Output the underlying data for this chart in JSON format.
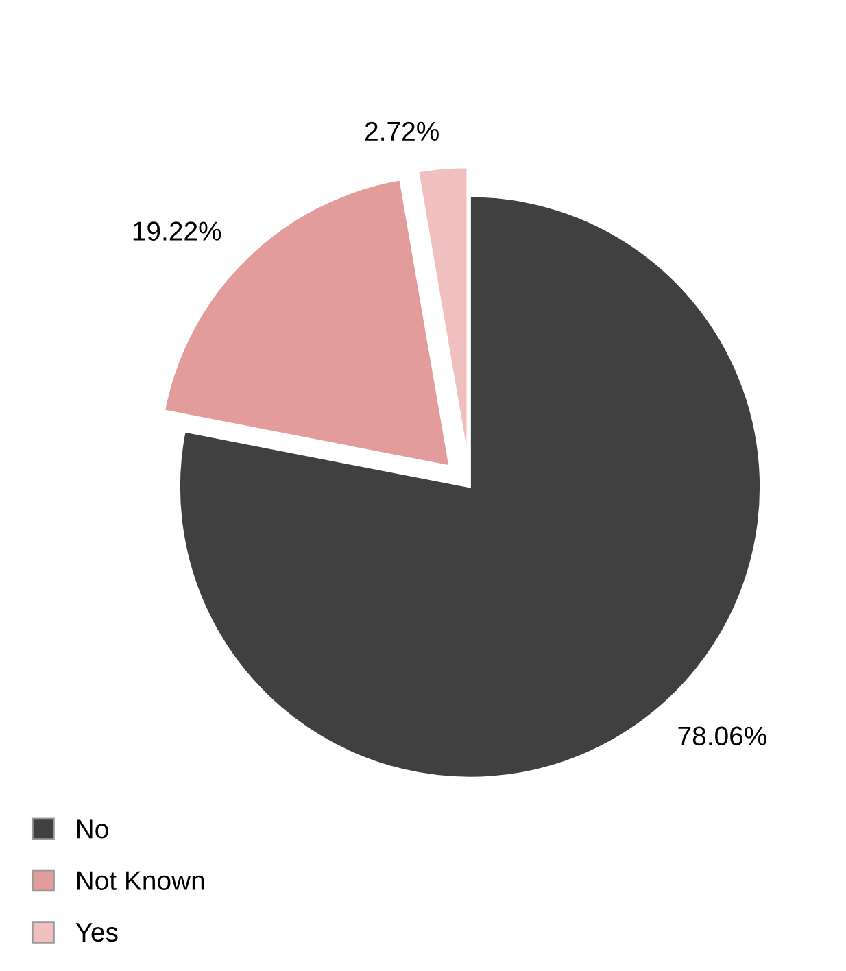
{
  "chart_data": {
    "type": "pie",
    "categories": [
      "No",
      "Not Known",
      "Yes"
    ],
    "values": [
      78.06,
      19.22,
      2.72
    ],
    "colors": [
      "#404040",
      "#e39c9c",
      "#f0c0c0"
    ],
    "value_labels": [
      "78.06%",
      "19.22%",
      "2.72%"
    ],
    "legend": "bottom left"
  }
}
